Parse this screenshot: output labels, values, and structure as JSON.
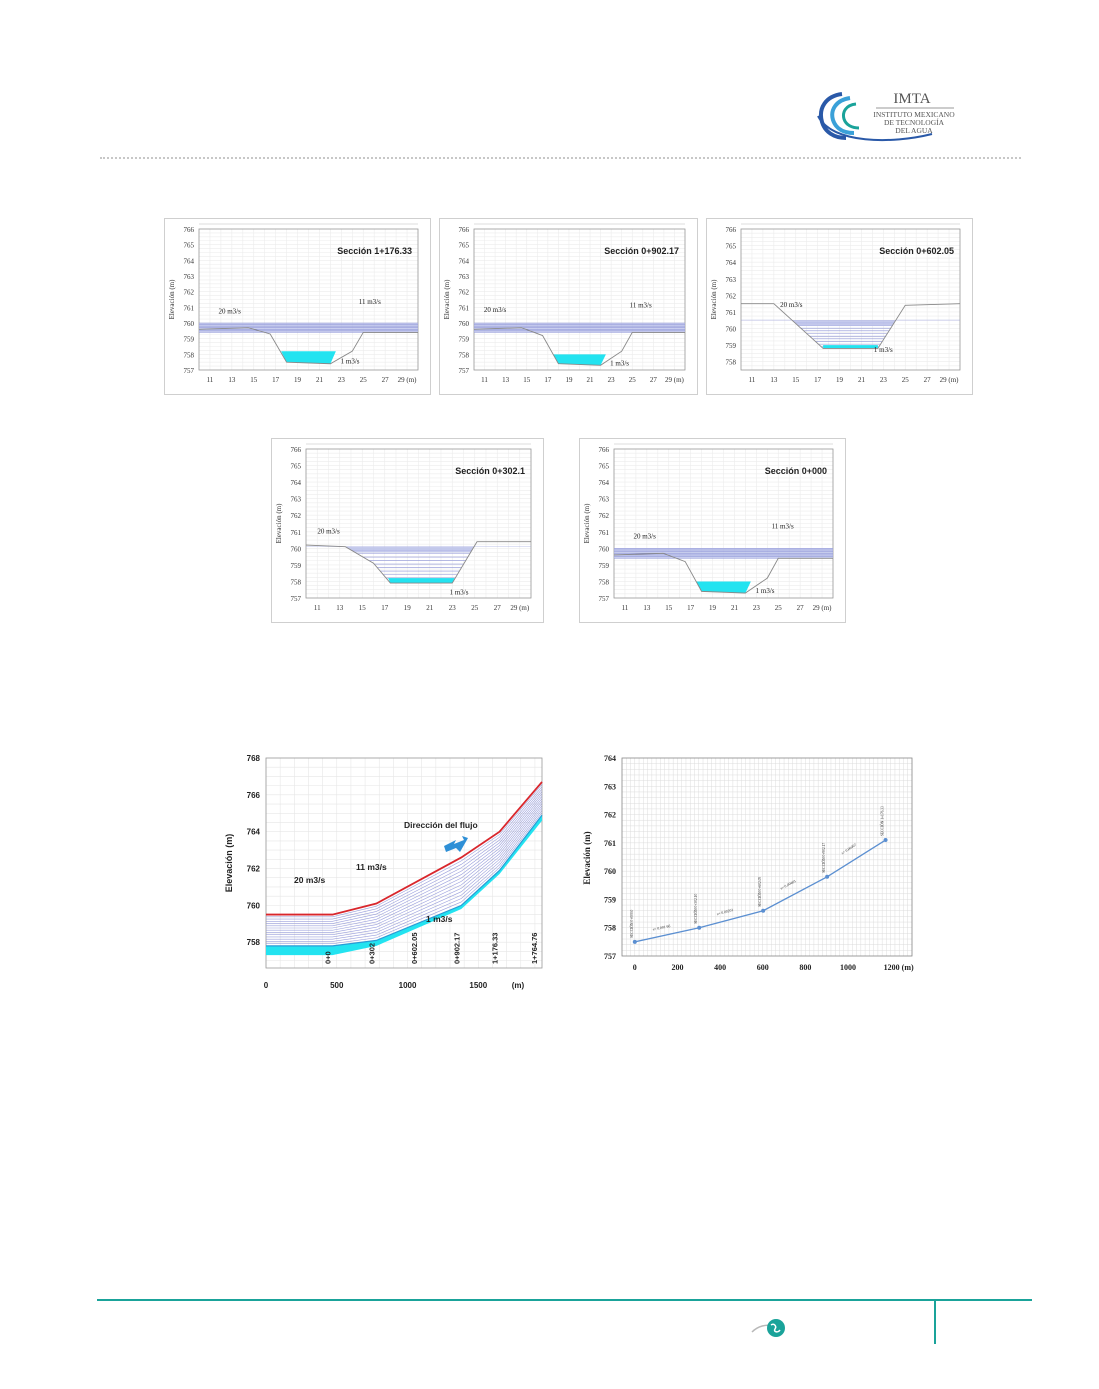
{
  "header": {
    "logo_text": "IMTA",
    "logo_sub1": "INSTITUTO MEXICANO",
    "logo_sub2": "DE TECNOLOGÍA",
    "logo_sub3": "DEL AGUA"
  },
  "colors": {
    "band": "#b7bde9",
    "band_line": "#8b92d6",
    "water": "#23e3f0",
    "profile_red": "#d9262c",
    "series_blue": "#5b8fd1",
    "arrow_blue": "#2e8fd6",
    "teal": "#1aa39a"
  },
  "chart_data": [
    {
      "type": "area",
      "title": "Sección 1+176.33",
      "ylabel": "Elevación (m)",
      "x_ticks": [
        "11",
        "13",
        "15",
        "17",
        "19",
        "21",
        "23",
        "25",
        "27",
        "29 (m)"
      ],
      "y_ticks": [
        "757",
        "758",
        "759",
        "760",
        "761",
        "762",
        "763",
        "764",
        "765",
        "766"
      ],
      "xlim": [
        10,
        30
      ],
      "ylim": [
        757,
        766
      ],
      "ground": [
        [
          10,
          759.6
        ],
        [
          14.5,
          759.7
        ],
        [
          16.5,
          759.3
        ],
        [
          18,
          757.5
        ],
        [
          22,
          757.4
        ],
        [
          24,
          758.2
        ],
        [
          25,
          759.4
        ],
        [
          30,
          759.4
        ]
      ],
      "band": [
        759.4,
        760.0
      ],
      "water": {
        "x": [
          17.5,
          22.5
        ],
        "level": 758.2
      },
      "annotations": [
        {
          "text": "20 m3/s",
          "x": 12.8,
          "y": 760.6
        },
        {
          "text": "11 m3/s",
          "x": 25.6,
          "y": 761.2
        },
        {
          "text": "1 m3/s",
          "x": 23.8,
          "y": 757.4
        }
      ]
    },
    {
      "type": "area",
      "title": "Sección 0+902.17",
      "ylabel": "Elevación (m)",
      "x_ticks": [
        "11",
        "13",
        "15",
        "17",
        "19",
        "21",
        "23",
        "25",
        "27",
        "29 (m)"
      ],
      "y_ticks": [
        "757",
        "758",
        "759",
        "760",
        "761",
        "762",
        "763",
        "764",
        "765",
        "766"
      ],
      "xlim": [
        10,
        30
      ],
      "ylim": [
        757,
        766
      ],
      "ground": [
        [
          10,
          759.6
        ],
        [
          14.5,
          759.7
        ],
        [
          16.5,
          759.2
        ],
        [
          18,
          757.4
        ],
        [
          22,
          757.3
        ],
        [
          24,
          758.2
        ],
        [
          25,
          759.4
        ],
        [
          30,
          759.4
        ]
      ],
      "band": [
        759.4,
        760.0
      ],
      "water": {
        "x": [
          17.5,
          22.5
        ],
        "level": 758.0
      },
      "annotations": [
        {
          "text": "20 m3/s",
          "x": 12.0,
          "y": 760.7
        },
        {
          "text": "11 m3/s",
          "x": 25.8,
          "y": 761.0
        },
        {
          "text": "1 m3/s",
          "x": 23.8,
          "y": 757.3
        }
      ]
    },
    {
      "type": "area",
      "title": "Sección 0+602.05",
      "ylabel": "Elevación (m)",
      "x_ticks": [
        "11",
        "13",
        "15",
        "17",
        "19",
        "21",
        "23",
        "25",
        "27",
        "29 (m)"
      ],
      "y_ticks": [
        "758",
        "759",
        "760",
        "761",
        "762",
        "763",
        "764",
        "765",
        "766"
      ],
      "xlim": [
        10,
        30
      ],
      "ylim": [
        757.5,
        766
      ],
      "ground": [
        [
          10,
          761.5
        ],
        [
          13,
          761.5
        ],
        [
          17.5,
          758.8
        ],
        [
          22.5,
          758.8
        ],
        [
          25,
          761.4
        ],
        [
          30,
          761.5
        ]
      ],
      "band": null,
      "fill": {
        "from": 758.9,
        "to": 760.5
      },
      "water": {
        "x": [
          17.5,
          22.5
        ],
        "level": 759.0
      },
      "annotations": [
        {
          "text": "20 m3/s",
          "x": 14.6,
          "y": 761.3
        },
        {
          "text": "1 m3/s",
          "x": 23.0,
          "y": 758.6
        }
      ]
    },
    {
      "type": "area",
      "title": "Sección 0+302.1",
      "ylabel": "Elevación (m)",
      "x_ticks": [
        "11",
        "13",
        "15",
        "17",
        "19",
        "21",
        "23",
        "25",
        "27",
        "29 (m)"
      ],
      "y_ticks": [
        "757",
        "758",
        "759",
        "760",
        "761",
        "762",
        "763",
        "764",
        "765",
        "766"
      ],
      "xlim": [
        10,
        30
      ],
      "ylim": [
        757,
        766
      ],
      "ground": [
        [
          10,
          760.2
        ],
        [
          13.5,
          760.1
        ],
        [
          16,
          759.1
        ],
        [
          17.5,
          757.9
        ],
        [
          23,
          757.9
        ],
        [
          25.2,
          760.4
        ],
        [
          30,
          760.4
        ]
      ],
      "band": null,
      "fill": {
        "from": 758.0,
        "to": 760.1
      },
      "water": {
        "x": [
          17.3,
          23.2
        ],
        "level": 758.2
      },
      "annotations": [
        {
          "text": "20 m3/s",
          "x": 12.0,
          "y": 760.9
        },
        {
          "text": "1 m3/s",
          "x": 23.6,
          "y": 757.2
        }
      ]
    },
    {
      "type": "area",
      "title": "Sección 0+000",
      "ylabel": "Elevación (m)",
      "x_ticks": [
        "11",
        "13",
        "15",
        "17",
        "19",
        "21",
        "23",
        "25",
        "27",
        "29 (m)"
      ],
      "y_ticks": [
        "757",
        "758",
        "759",
        "760",
        "761",
        "762",
        "763",
        "764",
        "765",
        "766"
      ],
      "xlim": [
        10,
        30
      ],
      "ylim": [
        757,
        766
      ],
      "ground": [
        [
          10,
          759.6
        ],
        [
          14.5,
          759.7
        ],
        [
          16.5,
          759.2
        ],
        [
          18,
          757.4
        ],
        [
          22,
          757.3
        ],
        [
          24,
          758.2
        ],
        [
          25,
          759.4
        ],
        [
          30,
          759.4
        ]
      ],
      "band": [
        759.4,
        760.0
      ],
      "water": {
        "x": [
          17.5,
          22.5
        ],
        "level": 758.0
      },
      "annotations": [
        {
          "text": "20 m3/s",
          "x": 12.8,
          "y": 760.6
        },
        {
          "text": "11 m3/s",
          "x": 25.4,
          "y": 761.2
        },
        {
          "text": "1 m3/s",
          "x": 23.8,
          "y": 757.3
        }
      ]
    },
    {
      "type": "line",
      "ylabel": "Elevación (m)",
      "xlabel": "(m)",
      "x_ticks": [
        "0",
        "500",
        "1000",
        "1500"
      ],
      "y_ticks": [
        "758",
        "760",
        "762",
        "764",
        "766",
        "768"
      ],
      "xlim": [
        0,
        1950
      ],
      "ylim": [
        756.6,
        768
      ],
      "section_labels": [
        {
          "text": "0+0",
          "x": 470
        },
        {
          "text": "0+302",
          "x": 780
        },
        {
          "text": "0+602.05",
          "x": 1080
        },
        {
          "text": "0+902.17",
          "x": 1380
        },
        {
          "text": "1+176.33",
          "x": 1650
        },
        {
          "text": "1+764.76",
          "x": 1930
        }
      ],
      "top_series": {
        "name": "20 m3/s",
        "x": [
          0,
          470,
          780,
          1380,
          1650,
          1950
        ],
        "y": [
          759.5,
          759.5,
          760.1,
          762.6,
          764.0,
          766.7
        ]
      },
      "middle_series": {
        "name": "11 m3/s",
        "x": [
          0,
          470,
          780,
          1380,
          1650,
          1950
        ],
        "y": [
          759.2,
          759.3,
          759.7,
          761.2,
          762.8,
          765.7
        ]
      },
      "bottom_series": {
        "name": "1 m3/s",
        "x": [
          0,
          470,
          780,
          1380,
          1650,
          1950
        ],
        "y": [
          757.8,
          757.8,
          758.1,
          760.0,
          761.9,
          764.9
        ]
      },
      "bed": {
        "x": [
          0,
          470,
          780,
          1380,
          1650,
          1950
        ],
        "y": [
          757.3,
          757.3,
          757.8,
          759.8,
          761.7,
          764.6
        ]
      },
      "annotation": "Dirección del flujo"
    },
    {
      "type": "line",
      "ylabel": "Elevación (m)",
      "x_ticks": [
        "0",
        "200",
        "400",
        "600",
        "800",
        "1000",
        "1200 (m)"
      ],
      "y_ticks": [
        "757",
        "758",
        "759",
        "760",
        "761",
        "762",
        "763",
        "764"
      ],
      "xlim": [
        -60,
        1300
      ],
      "ylim": [
        757,
        764
      ],
      "series": [
        {
          "x": [
            0,
            302,
            602,
            902,
            1176
          ],
          "y": [
            757.5,
            758.0,
            758.6,
            759.8,
            761.1
          ]
        }
      ],
      "point_labels": [
        "SECCIÓN 0+000.0",
        "SECCIÓN 0+302.10",
        "SECCIÓN 0+602.05",
        "SECCIÓN 0+902.17",
        "SECCIÓN 1+176.33"
      ],
      "slope_labels": [
        "s= 0.001 66",
        "s= 0.00201",
        "s= 0.00403",
        "s= 0.00467"
      ]
    }
  ]
}
